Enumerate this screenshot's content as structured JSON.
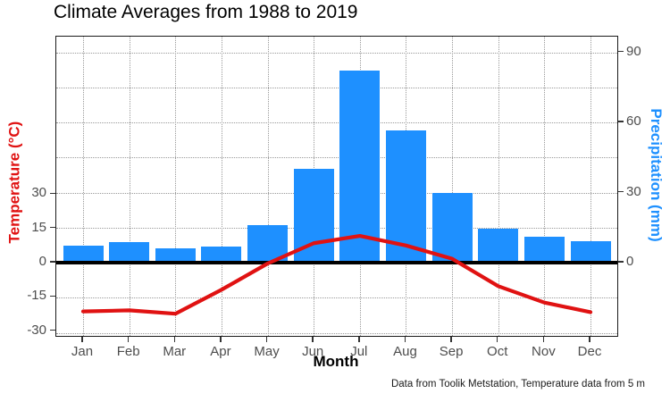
{
  "title": "Climate Averages from 1988 to 2019",
  "caption": "Data from Toolik Metstation, Temperature data from 5 m",
  "chart_data": {
    "type": "bar",
    "title": "Climate Averages from 1988 to 2019",
    "categories": [
      "Jan",
      "Feb",
      "Mar",
      "Apr",
      "May",
      "Jun",
      "Jul",
      "Aug",
      "Sep",
      "Oct",
      "Nov",
      "Dec"
    ],
    "series": [
      {
        "name": "Precipitation",
        "type": "bar",
        "axis": "right",
        "color": "#1E90FF",
        "values": [
          7.4,
          8.9,
          6.3,
          7.0,
          16.1,
          40.2,
          82.1,
          56.6,
          29.9,
          14.7,
          11.0,
          9.1
        ]
      },
      {
        "name": "Temperature",
        "type": "line",
        "axis": "left",
        "color": "#E01212",
        "values": [
          -21.4,
          -20.9,
          -22.4,
          -11.9,
          -0.4,
          8.5,
          11.7,
          7.5,
          1.7,
          -10.3,
          -17.5,
          -21.7
        ]
      }
    ],
    "xlabel": "Month",
    "left_axis": {
      "label": "Temperature (°C)",
      "color": "#E01212",
      "ticks": [
        30,
        15,
        0,
        -15,
        -30
      ],
      "range": [
        -32.1,
        99.0
      ]
    },
    "right_axis": {
      "label": "Precipitation (mm)",
      "color": "#1E90FF",
      "ticks": [
        90,
        60,
        30,
        0
      ],
      "gridlines": [
        -30,
        -15,
        0,
        15,
        30,
        45,
        60,
        75,
        90
      ],
      "range": [
        -31.3,
        96.7
      ]
    },
    "grid": "dotted horizontal every 15 mm, dotted vertical at each month",
    "zero_line": "thick black at 0",
    "legend": "none"
  }
}
